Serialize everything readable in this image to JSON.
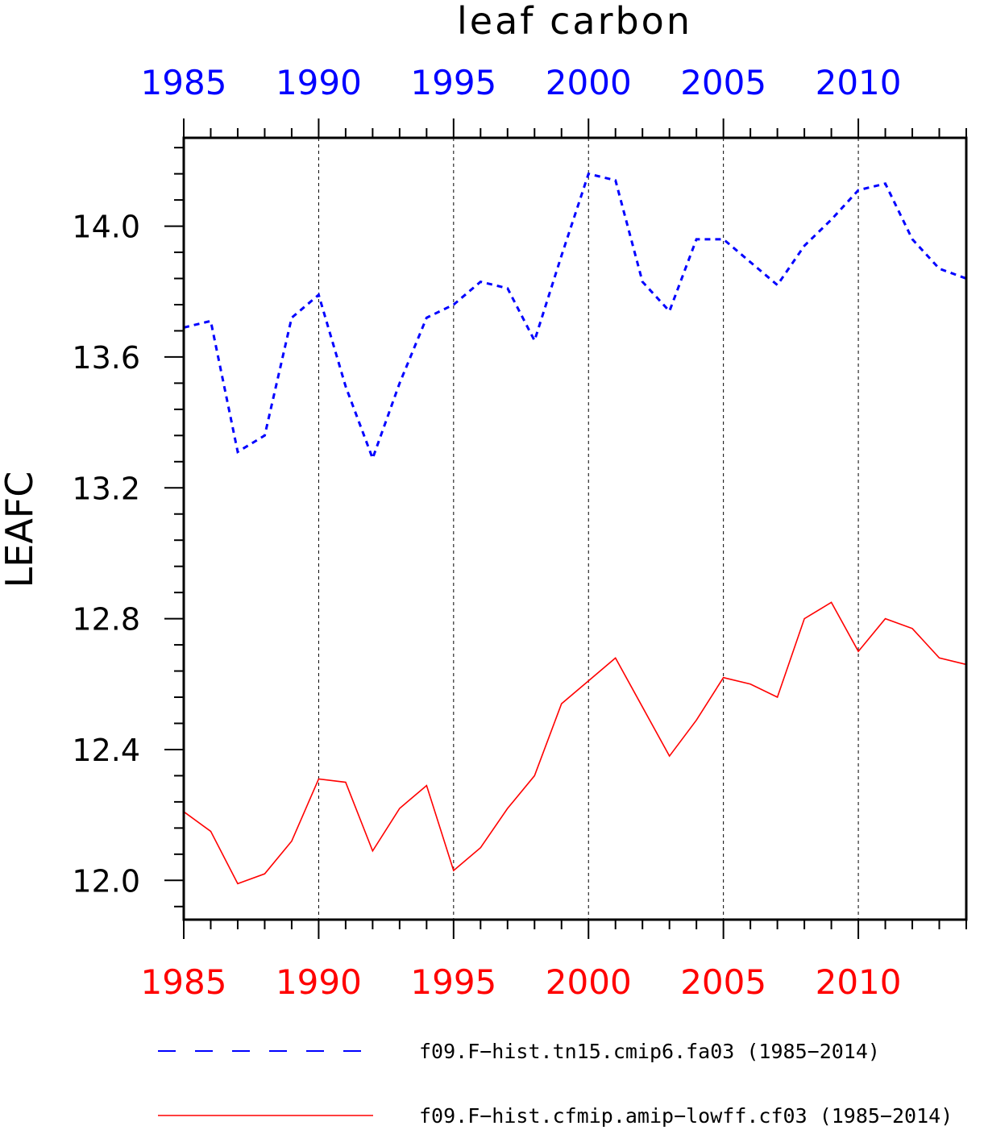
{
  "chart_data": {
    "type": "line",
    "title": "leaf carbon",
    "xlabel": "",
    "ylabel": "LEAFC",
    "xlim": [
      1985,
      2014
    ],
    "ylim": [
      11.88,
      14.27
    ],
    "yticks": [
      12.0,
      12.4,
      12.8,
      13.2,
      13.6,
      14.0
    ],
    "ytick_labels": [
      "12.0",
      "12.4",
      "12.8",
      "13.2",
      "13.6",
      "14.0"
    ],
    "xticks": [
      1985,
      1990,
      1995,
      2000,
      2005,
      2010
    ],
    "xtick_labels_top": [
      "1985",
      "1990",
      "1995",
      "2000",
      "2005",
      "2010"
    ],
    "xtick_labels_bottom": [
      "1985",
      "1990",
      "1995",
      "2000",
      "2005",
      "2010"
    ],
    "grid": "vertical dashed at major x ticks",
    "legend_position": "bottom",
    "x": [
      1985,
      1986,
      1987,
      1988,
      1989,
      1990,
      1991,
      1992,
      1993,
      1994,
      1995,
      1996,
      1997,
      1998,
      1999,
      2000,
      2001,
      2002,
      2003,
      2004,
      2005,
      2006,
      2007,
      2008,
      2009,
      2010,
      2011,
      2012,
      2013,
      2014
    ],
    "series": [
      {
        "name": "f09.F−hist.tn15.cmip6.fa03 (1985−2014)",
        "color": "#0000ff",
        "style": "dashed",
        "values": [
          13.69,
          13.71,
          13.31,
          13.36,
          13.72,
          13.79,
          13.51,
          13.29,
          13.52,
          13.72,
          13.76,
          13.83,
          13.81,
          13.65,
          13.91,
          14.16,
          14.14,
          13.83,
          13.74,
          13.96,
          13.96,
          13.89,
          13.82,
          13.94,
          14.02,
          14.11,
          14.13,
          13.96,
          13.87,
          13.84
        ]
      },
      {
        "name": "f09.F−hist.cfmip.amip−lowff.cf03 (1985−2014)",
        "color": "#ff0000",
        "style": "solid",
        "values": [
          12.21,
          12.15,
          11.99,
          12.02,
          12.12,
          12.31,
          12.3,
          12.09,
          12.22,
          12.29,
          12.03,
          12.1,
          12.22,
          12.32,
          12.54,
          12.61,
          12.68,
          12.53,
          12.38,
          12.49,
          12.62,
          12.6,
          12.56,
          12.8,
          12.85,
          12.7,
          12.8,
          12.77,
          12.68,
          12.66
        ]
      }
    ]
  }
}
